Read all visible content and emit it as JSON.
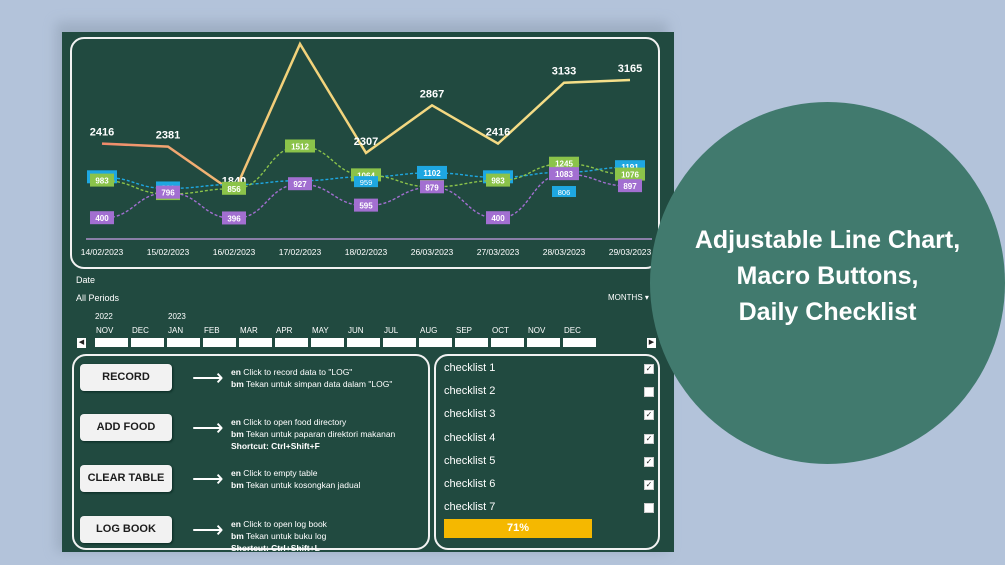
{
  "chart_data": {
    "type": "line",
    "categories": [
      "14/02/2023",
      "15/02/2023",
      "16/02/2023",
      "17/02/2023",
      "18/02/2023",
      "26/03/2023",
      "27/03/2023",
      "28/03/2023",
      "29/03/2023"
    ],
    "series": [
      {
        "values": [
          2416,
          2381,
          1840,
          3589,
          2307,
          2867,
          2416,
          3133,
          3165
        ],
        "color": "#f2c27a"
      },
      {
        "values": [
          1034,
          861,
          null,
          null,
          null,
          1102,
          1034,
          null,
          1191
        ],
        "color": "#1ea7e1"
      },
      {
        "values": [
          983,
          774,
          856,
          1512,
          1064,
          886,
          983,
          1245,
          1076
        ],
        "color": "#8bc34a"
      },
      {
        "values": [
          400,
          796,
          396,
          927,
          595,
          879,
          400,
          1083,
          897
        ],
        "color": "#a26fd1"
      }
    ],
    "extra_labels": [
      {
        "series": 1,
        "index": 7,
        "value": 806
      },
      {
        "series": 1,
        "index": 4,
        "value": 959
      }
    ]
  },
  "filter": {
    "date_label": "Date",
    "periods_label": "All Periods",
    "granularity": "MONTHS",
    "years": [
      "2022",
      "2023"
    ],
    "months": [
      "NOV",
      "DEC",
      "JAN",
      "FEB",
      "MAR",
      "APR",
      "MAY",
      "JUN",
      "JUL",
      "AUG",
      "SEP",
      "OCT",
      "NOV",
      "DEC"
    ]
  },
  "macros": [
    {
      "label": "RECORD",
      "en": "Click to record data to \"LOG\"",
      "bm": "Tekan untuk simpan data dalam \"LOG\"",
      "shortcut": ""
    },
    {
      "label": "ADD FOOD",
      "en": "Click to open food directory",
      "bm": "Tekan untuk paparan direktori makanan",
      "shortcut": "Shortcut: Ctrl+Shift+F"
    },
    {
      "label": "CLEAR TABLE",
      "en": "Click to empty table",
      "bm": "Tekan untuk kosongkan jadual",
      "shortcut": ""
    },
    {
      "label": "LOG BOOK",
      "en": "Click to open log book",
      "bm": "Tekan untuk buku log",
      "shortcut": "Shortcut: Ctrl+Shift+L"
    }
  ],
  "lang": {
    "en": "en",
    "bm": "bm"
  },
  "checklist": {
    "items": [
      {
        "label": "checklist 1",
        "checked": true
      },
      {
        "label": "checklist 2",
        "checked": false
      },
      {
        "label": "checklist 3",
        "checked": true
      },
      {
        "label": "checklist 4",
        "checked": true
      },
      {
        "label": "checklist 5",
        "checked": true
      },
      {
        "label": "checklist 6",
        "checked": true
      },
      {
        "label": "checklist 7",
        "checked": false
      }
    ],
    "progress": "71%",
    "progress_value": 0.71
  },
  "promo": {
    "line1": "Adjustable Line Chart,",
    "line2": "Macro Buttons,",
    "line3": "Daily Checklist"
  },
  "colors": {
    "dashboard_bg": "#214a40",
    "circle_bg": "#417a6e",
    "progress": "#f5b800"
  }
}
